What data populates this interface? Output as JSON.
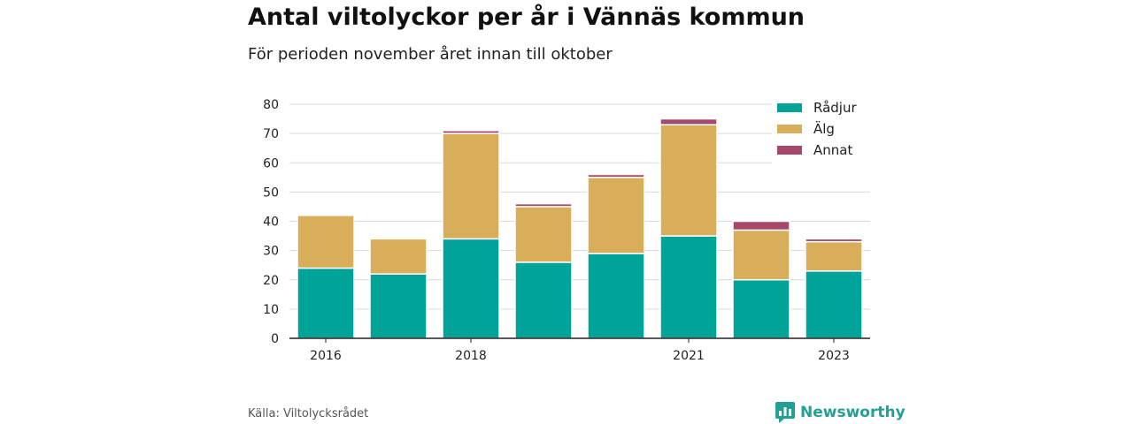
{
  "title": "Antal viltolyckor per år i Vännäs kommun",
  "subtitle": "För perioden november året innan till oktober",
  "source": "Källa: Viltolycksrådet",
  "brand": "Newsworthy",
  "colors": {
    "radjur": "#00a398",
    "alg": "#d8ae5a",
    "annat": "#a7476a",
    "brand": "#23a094"
  },
  "chart_data": {
    "type": "bar",
    "stacked": true,
    "categories": [
      "2016",
      "2017",
      "2018",
      "2019",
      "2020",
      "2021",
      "2022",
      "2023"
    ],
    "x_tick_labels": [
      "2016",
      "",
      "2018",
      "",
      "",
      "2021",
      "",
      "2023"
    ],
    "series": [
      {
        "name": "Rådjur",
        "values": [
          24,
          22,
          34,
          26,
          29,
          35,
          20,
          23
        ]
      },
      {
        "name": "Älg",
        "values": [
          18,
          12,
          36,
          19,
          26,
          38,
          17,
          10
        ]
      },
      {
        "name": "Annat",
        "values": [
          0,
          0,
          1,
          1,
          1,
          2,
          3,
          1
        ]
      }
    ],
    "ylim": [
      0,
      80
    ],
    "yticks": [
      0,
      10,
      20,
      30,
      40,
      50,
      60,
      70,
      80
    ],
    "grid": true,
    "legend_position": "top-right"
  }
}
